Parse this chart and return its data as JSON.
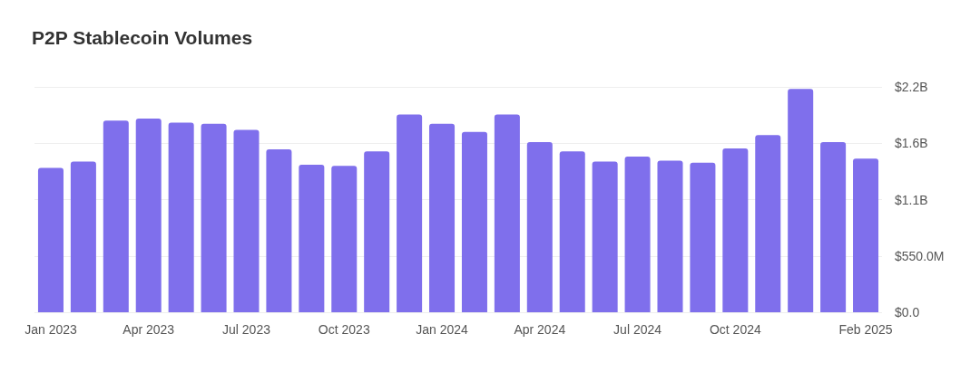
{
  "chart_data": {
    "type": "bar",
    "title": "P2P Stablecoin Volumes",
    "categories": [
      "Jan 2023",
      null,
      null,
      "Apr 2023",
      null,
      null,
      "Jul 2023",
      null,
      null,
      "Oct 2023",
      null,
      null,
      "Jan 2024",
      null,
      null,
      "Apr 2024",
      null,
      null,
      "Jul 2024",
      null,
      null,
      "Oct 2024",
      null,
      null,
      null,
      "Feb 2025"
    ],
    "values": [
      1410000000,
      1470000000,
      1870000000,
      1890000000,
      1850000000,
      1840000000,
      1780000000,
      1590000000,
      1440000000,
      1430000000,
      1570000000,
      1930000000,
      1840000000,
      1760000000,
      1930000000,
      1660000000,
      1570000000,
      1470000000,
      1520000000,
      1480000000,
      1460000000,
      1600000000,
      1730000000,
      2180000000,
      1660000000,
      1500000000
    ],
    "color": "#7f6fec",
    "ylim": [
      0,
      2200000000
    ],
    "yticks": [
      {
        "value": 0,
        "label": "$0.0"
      },
      {
        "value": 550000000,
        "label": "$550.0M"
      },
      {
        "value": 1100000000,
        "label": "$1.1B"
      },
      {
        "value": 1650000000,
        "label": "$1.6B"
      },
      {
        "value": 2200000000,
        "label": "$2.2B"
      }
    ],
    "grid": "y"
  }
}
